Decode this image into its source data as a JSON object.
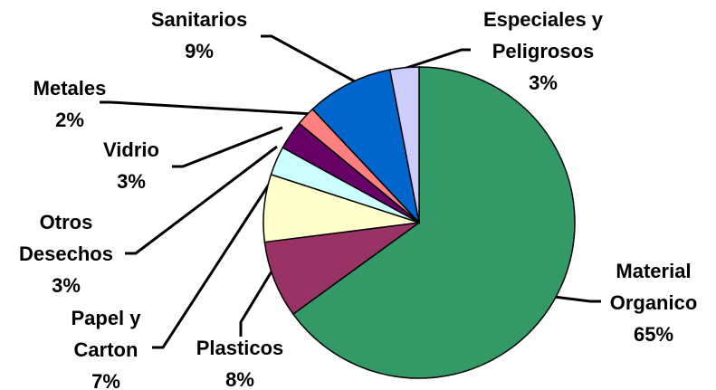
{
  "chart_data": {
    "type": "pie",
    "categories": [
      "Material Organico",
      "Plasticos",
      "Papel y Carton",
      "Otros Desechos",
      "Vidrio",
      "Metales",
      "Sanitarios",
      "Especiales y Peligrosos"
    ],
    "values": [
      65,
      8,
      7,
      3,
      3,
      2,
      9,
      3
    ],
    "value_labels": [
      "65%",
      "8%",
      "7%",
      "3%",
      "3%",
      "2%",
      "9%",
      "3%"
    ],
    "colors": [
      "#339966",
      "#993366",
      "#ffffcc",
      "#ccffff",
      "#660066",
      "#ff8080",
      "#0066cc",
      "#ccccff"
    ]
  }
}
